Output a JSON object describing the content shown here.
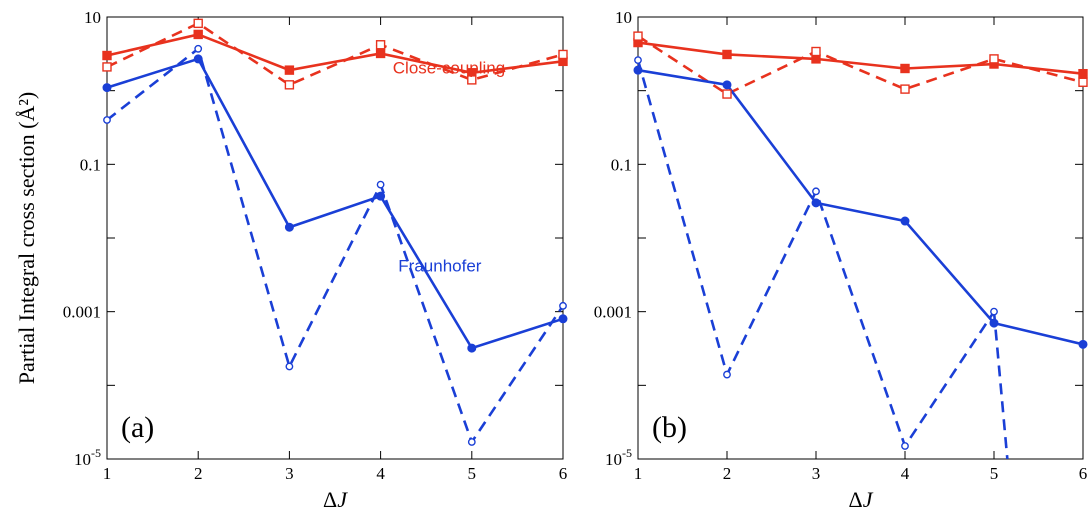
{
  "ylabel": "Partial Integral cross section (Å²)",
  "colors": {
    "close_coupling": "#e8321e",
    "fraunhofer": "#1a3fd6",
    "axis": "#000000"
  },
  "chart_data": [
    {
      "type": "line",
      "panel_label": "(a)",
      "xlabel": "ΔJ",
      "x": [
        1,
        2,
        3,
        4,
        5,
        6
      ],
      "xlim": [
        1,
        6
      ],
      "ylim": [
        1e-05,
        10
      ],
      "yscale": "log",
      "y_ticks": [
        {
          "value": 10,
          "label": "10"
        },
        {
          "value": 0.1,
          "label": "0.1"
        },
        {
          "value": 0.001,
          "label": "0.001"
        },
        {
          "value": 1e-05,
          "label": "10^-5"
        }
      ],
      "annotations": [
        {
          "text": "Close-coupling",
          "x": 4.75,
          "y": 1.7,
          "color": "#e8321e"
        },
        {
          "text": "Fraunhofer",
          "x": 4.65,
          "y": 0.0035,
          "color": "#1a3fd6"
        }
      ],
      "series": [
        {
          "group": "close_coupling",
          "marker": "filled-square",
          "dash": false,
          "values": [
            3.0,
            5.8,
            1.9,
            3.2,
            1.75,
            2.5
          ]
        },
        {
          "group": "close_coupling",
          "marker": "open-square",
          "dash": true,
          "values": [
            2.1,
            8.2,
            1.2,
            4.2,
            1.4,
            3.1
          ]
        },
        {
          "group": "fraunhofer",
          "marker": "filled-circle",
          "dash": false,
          "values": [
            1.1,
            2.7,
            0.014,
            0.037,
            0.00032,
            0.0008
          ]
        },
        {
          "group": "fraunhofer",
          "marker": "open-circle",
          "dash": true,
          "values": [
            0.4,
            3.7,
            0.00018,
            0.053,
            1.7e-05,
            0.0012
          ]
        }
      ]
    },
    {
      "type": "line",
      "panel_label": "(b)",
      "xlabel": "ΔJ",
      "x": [
        1,
        2,
        3,
        4,
        5,
        6
      ],
      "xlim": [
        1,
        6
      ],
      "ylim": [
        1e-05,
        10
      ],
      "yscale": "log",
      "y_ticks": [
        {
          "value": 10,
          "label": "10"
        },
        {
          "value": 0.1,
          "label": "0.1"
        },
        {
          "value": 0.001,
          "label": "0.001"
        },
        {
          "value": 1e-05,
          "label": "10^-5"
        }
      ],
      "annotations": [],
      "series": [
        {
          "group": "close_coupling",
          "marker": "filled-square",
          "dash": false,
          "values": [
            4.5,
            3.1,
            2.7,
            2.0,
            2.3,
            1.7
          ]
        },
        {
          "group": "close_coupling",
          "marker": "open-square",
          "dash": true,
          "values": [
            5.5,
            0.9,
            3.4,
            1.05,
            2.7,
            1.3
          ]
        },
        {
          "group": "fraunhofer",
          "marker": "filled-circle",
          "dash": false,
          "values": [
            1.9,
            1.2,
            0.03,
            0.017,
            0.0007,
            0.00036
          ]
        },
        {
          "group": "fraunhofer",
          "marker": "open-circle",
          "dash": true,
          "values": [
            2.6,
            0.00014,
            0.043,
            1.5e-05,
            0.001,
            null
          ]
        }
      ],
      "tail": {
        "group": "fraunhofer",
        "dash": true,
        "x": [
          5,
          5.15
        ],
        "y": [
          0.001,
          1e-05
        ]
      }
    }
  ]
}
